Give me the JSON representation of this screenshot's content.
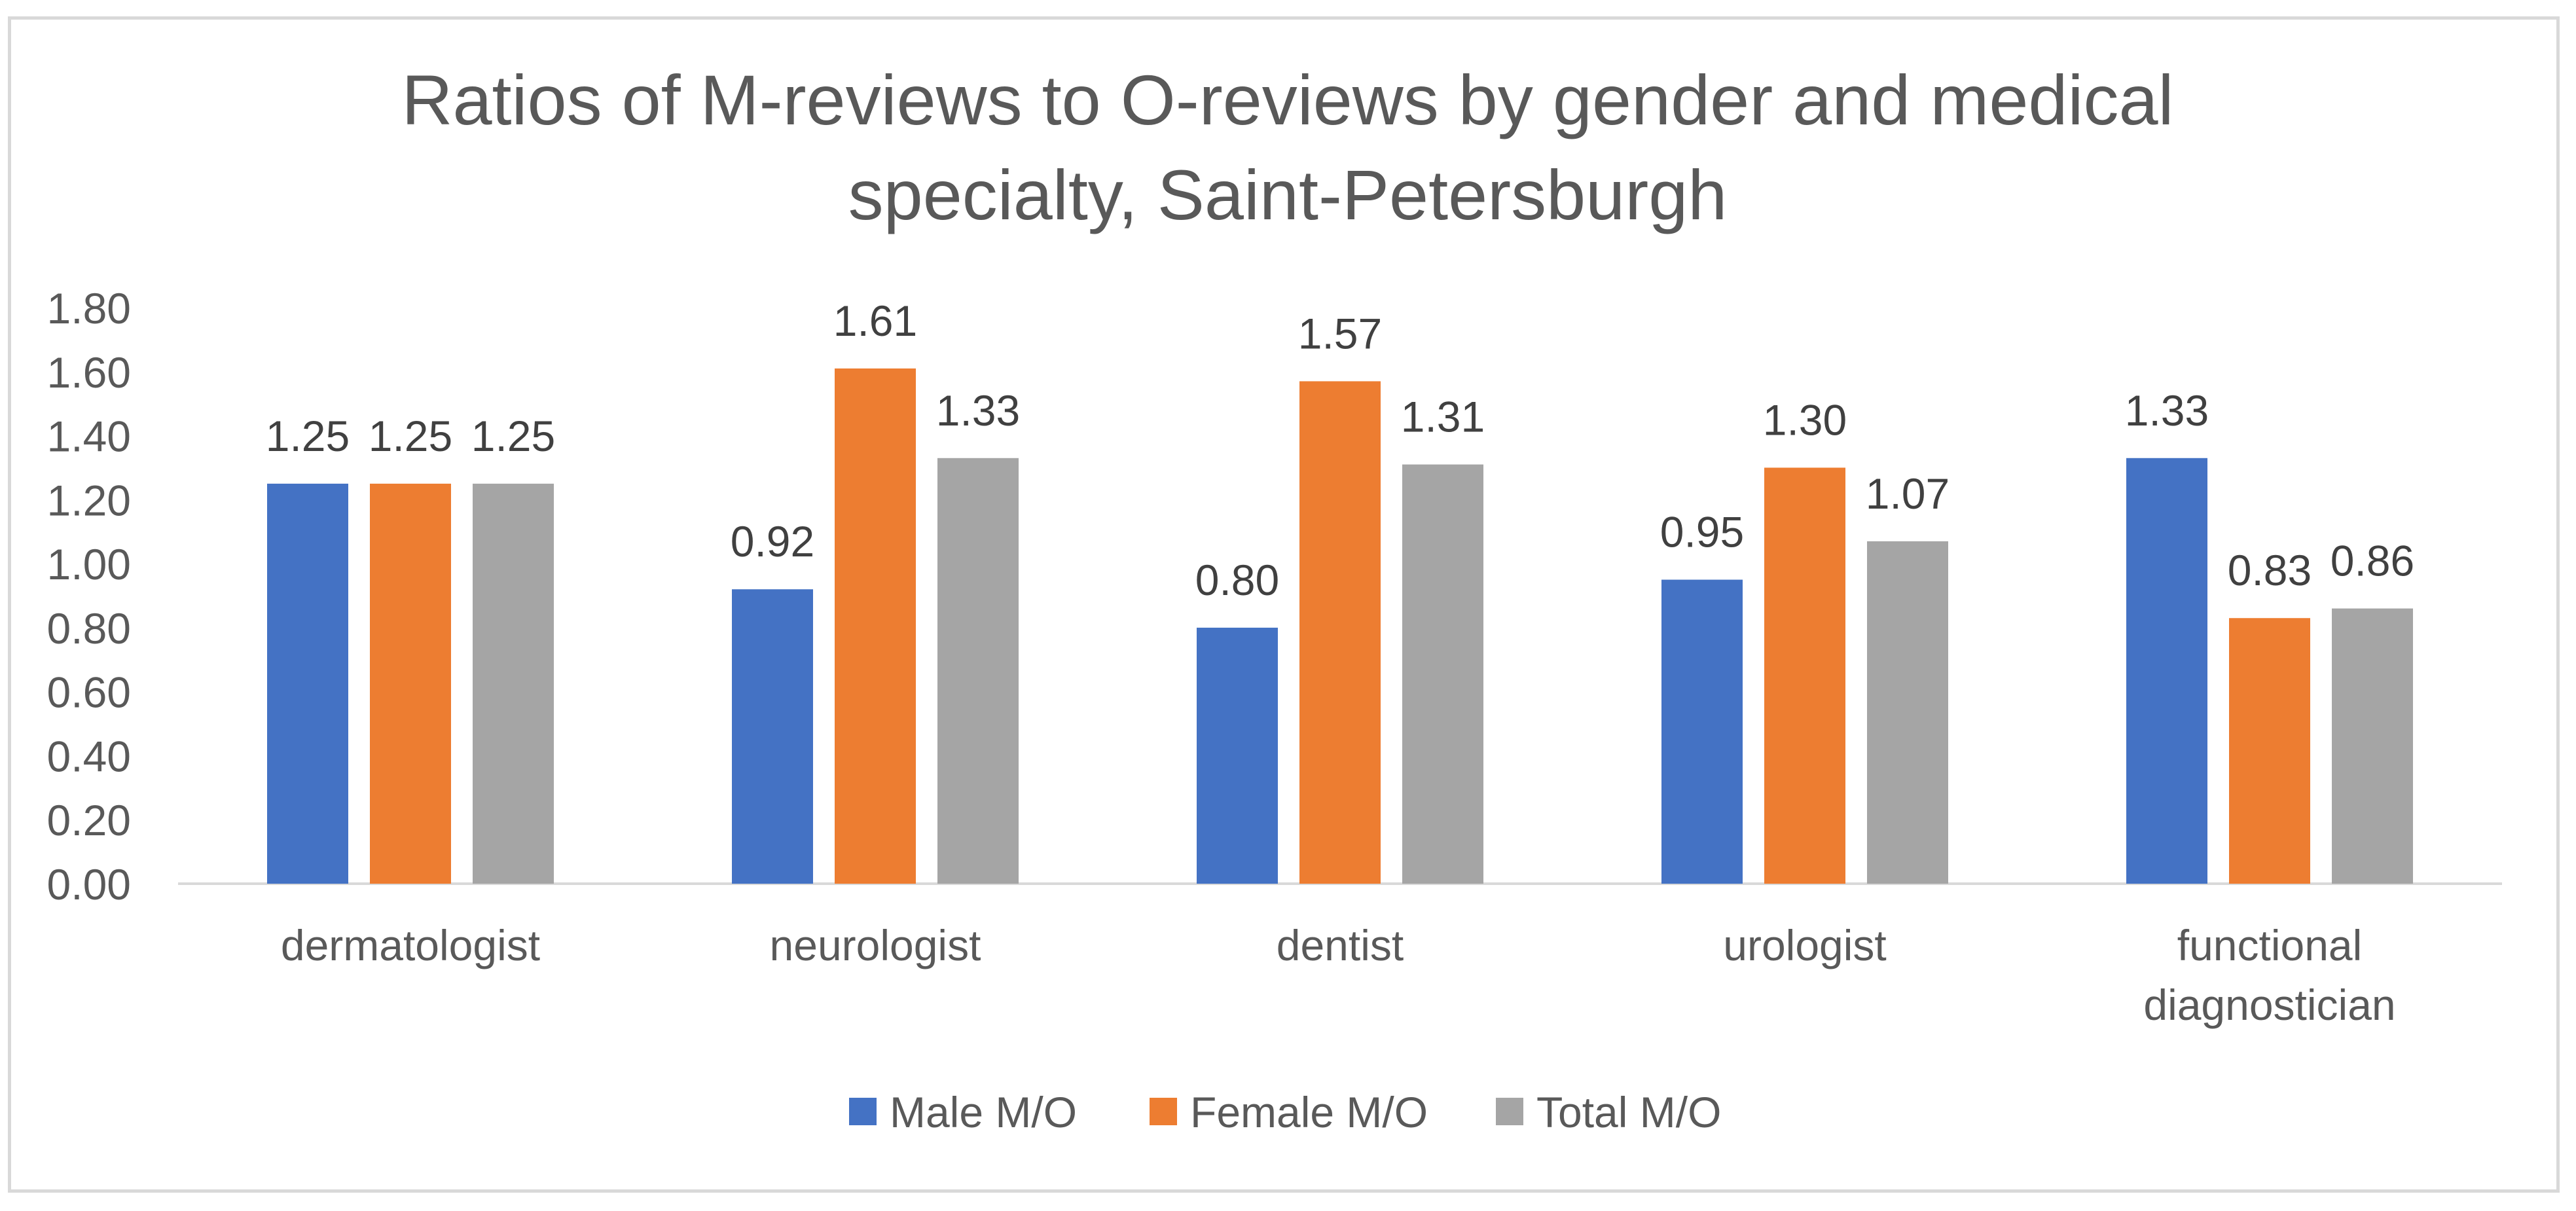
{
  "chart_data": {
    "type": "bar",
    "title_lines": [
      "Ratios of M-reviews to O-reviews by gender and medical",
      "specialty, Saint-Petersburgh"
    ],
    "categories": [
      [
        "dermatologist"
      ],
      [
        "neurologist"
      ],
      [
        "dentist"
      ],
      [
        "urologist"
      ],
      [
        "functional",
        "diagnostician"
      ]
    ],
    "series": [
      {
        "name": "Male M/O",
        "color": "#4472c4",
        "values": [
          1.25,
          0.92,
          0.8,
          0.95,
          1.33
        ]
      },
      {
        "name": "Female M/O",
        "color": "#ed7d31",
        "values": [
          1.25,
          1.61,
          1.57,
          1.3,
          0.83
        ]
      },
      {
        "name": "Total M/O",
        "color": "#a5a5a5",
        "values": [
          1.25,
          1.33,
          1.31,
          1.07,
          0.86
        ]
      }
    ],
    "y_ticks": [
      "0.00",
      "0.20",
      "0.40",
      "0.60",
      "0.80",
      "1.00",
      "1.20",
      "1.40",
      "1.60",
      "1.80"
    ],
    "ylim": [
      0,
      1.8
    ],
    "grid": false,
    "legend_position": "bottom",
    "xlabel": "",
    "ylabel": ""
  }
}
